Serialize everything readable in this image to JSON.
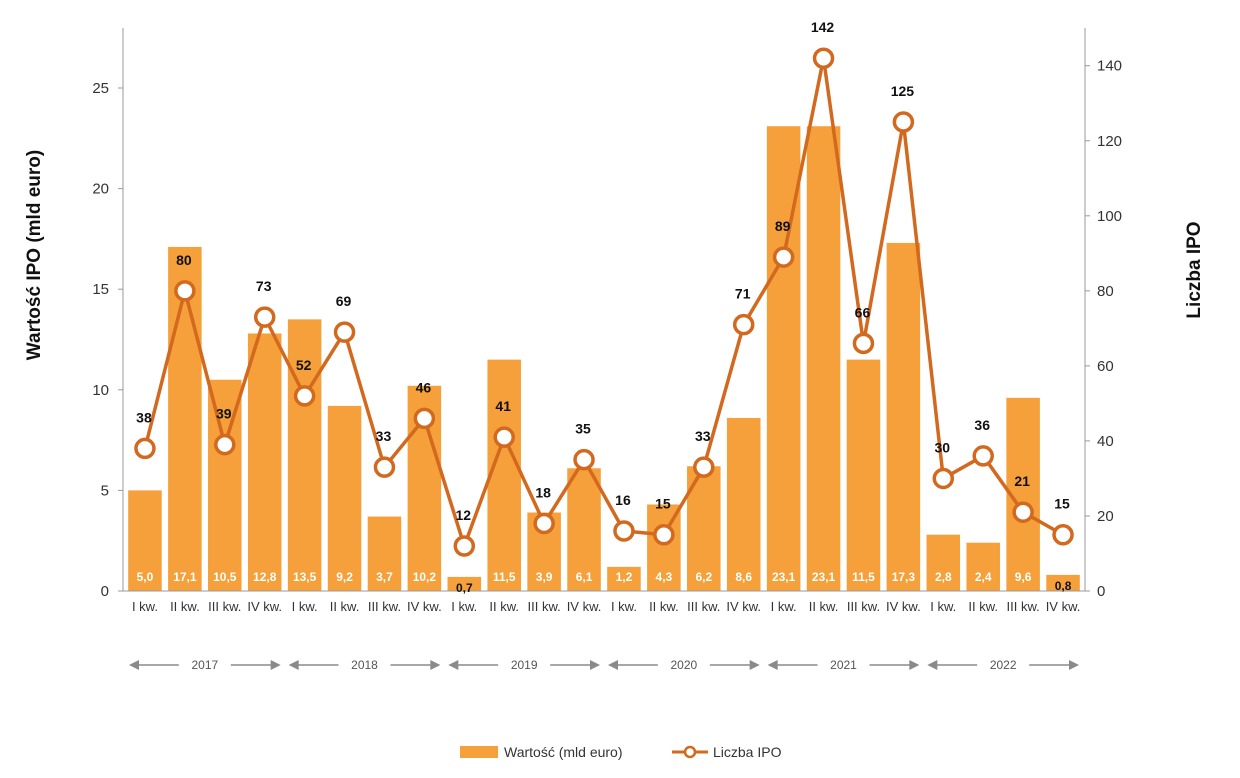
{
  "chart_data": {
    "type": "bar+line",
    "categories": [
      "I kw.",
      "II kw.",
      "III kw.",
      "IV kw.",
      "I kw.",
      "II kw.",
      "III kw.",
      "IV kw.",
      "I kw.",
      "II kw.",
      "III kw.",
      "IV kw.",
      "I kw.",
      "II kw.",
      "III kw.",
      "IV kw.",
      "I kw.",
      "II kw.",
      "III kw.",
      "IV kw.",
      "I kw.",
      "II kw.",
      "III kw.",
      "IV kw."
    ],
    "years": [
      "2017",
      "2018",
      "2019",
      "2020",
      "2021",
      "2022"
    ],
    "series": [
      {
        "name": "Wartość (mld euro)",
        "type": "bar",
        "axis": "left",
        "color": "#F5A03A",
        "values": [
          5.0,
          17.1,
          10.5,
          12.8,
          13.5,
          9.2,
          3.7,
          10.2,
          0.7,
          11.5,
          3.9,
          6.1,
          1.2,
          4.3,
          6.2,
          8.6,
          23.1,
          23.1,
          11.5,
          17.3,
          2.8,
          2.4,
          9.6,
          0.8
        ],
        "labels": [
          "5,0",
          "17,1",
          "10,5",
          "12,8",
          "13,5",
          "9,2",
          "3,7",
          "10,2",
          "0,7",
          "11,5",
          "3,9",
          "6,1",
          "1,2",
          "4,3",
          "6,2",
          "8,6",
          "23,1",
          "23,1",
          "11,5",
          "17,3",
          "2,8",
          "2,4",
          "9,6",
          "0,8"
        ]
      },
      {
        "name": "Liczba IPO",
        "type": "line",
        "axis": "right",
        "color": "#D2691E",
        "values": [
          38,
          80,
          39,
          73,
          52,
          69,
          33,
          46,
          12,
          41,
          18,
          35,
          16,
          15,
          33,
          71,
          89,
          142,
          66,
          125,
          30,
          36,
          21,
          15
        ],
        "labels": [
          "38",
          "80",
          "39",
          "73",
          "52",
          "69",
          "33",
          "46",
          "12",
          "41",
          "18",
          "35",
          "16",
          "15",
          "33",
          "71",
          "89",
          "142",
          "66",
          "125",
          "30",
          "36",
          "21",
          "15"
        ]
      }
    ],
    "ylabel_left": "Wartość IPO (mld euro)",
    "ylabel_right": "Liczba IPO",
    "ylim_left": [
      0,
      28
    ],
    "ylim_right": [
      0,
      150
    ],
    "yticks_left": [
      "0",
      "5",
      "10",
      "15",
      "20",
      "25"
    ],
    "yticks_right": [
      "0",
      "20",
      "40",
      "60",
      "80",
      "100",
      "120",
      "140"
    ],
    "legend_position": "bottom",
    "grid": false
  }
}
